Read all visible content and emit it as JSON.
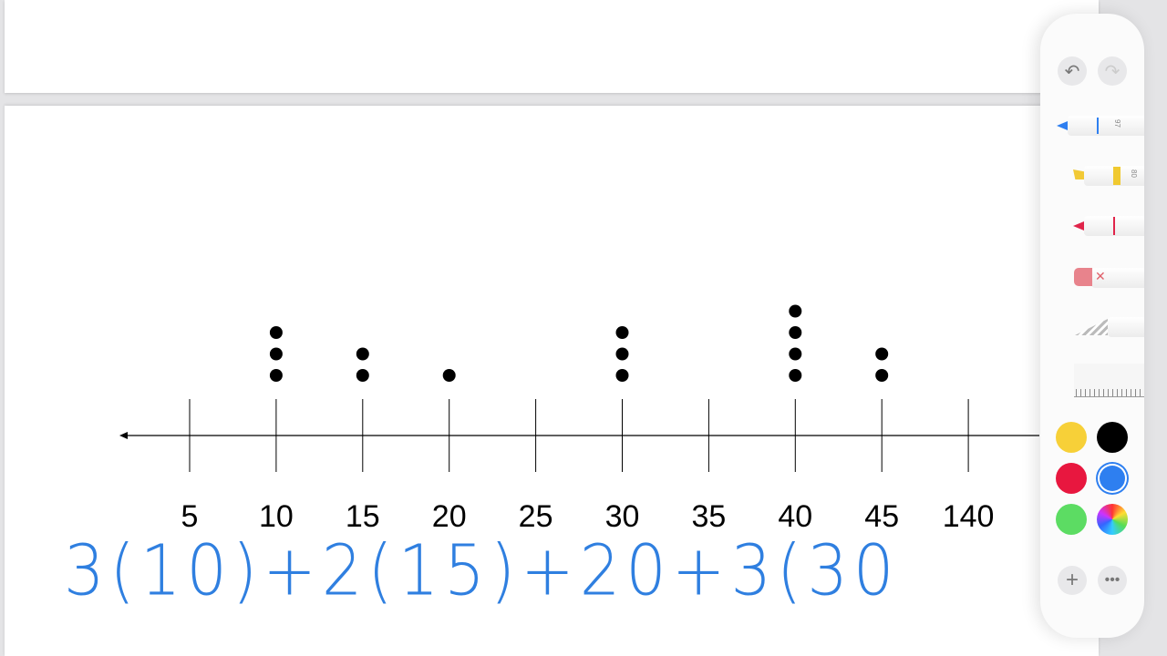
{
  "chart_data": {
    "type": "dot plot",
    "tick_labels": [
      "5",
      "10",
      "15",
      "20",
      "25",
      "30",
      "35",
      "40",
      "45",
      "140"
    ],
    "points": [
      {
        "x": "10",
        "count": 3
      },
      {
        "x": "15",
        "count": 2
      },
      {
        "x": "20",
        "count": 1
      },
      {
        "x": "30",
        "count": 3
      },
      {
        "x": "40",
        "count": 4
      },
      {
        "x": "45",
        "count": 2
      }
    ],
    "axis_arrow": "left",
    "grid": false
  },
  "handwriting": {
    "text": "3(10)+2(15)+20+3(30",
    "color": "#2f7fe0"
  },
  "toolbar": {
    "undo_icon": "undo-icon",
    "redo_icon": "redo-icon",
    "pen_size": "97",
    "highlighter_size": "80",
    "colors": [
      "#f7d038",
      "#000000",
      "#e8173f",
      "#2e7ff0",
      "#5cdc63",
      "color-wheel"
    ],
    "selected_color": "#2e7ff0",
    "add_icon": "plus-icon",
    "more_icon": "ellipsis-icon"
  }
}
